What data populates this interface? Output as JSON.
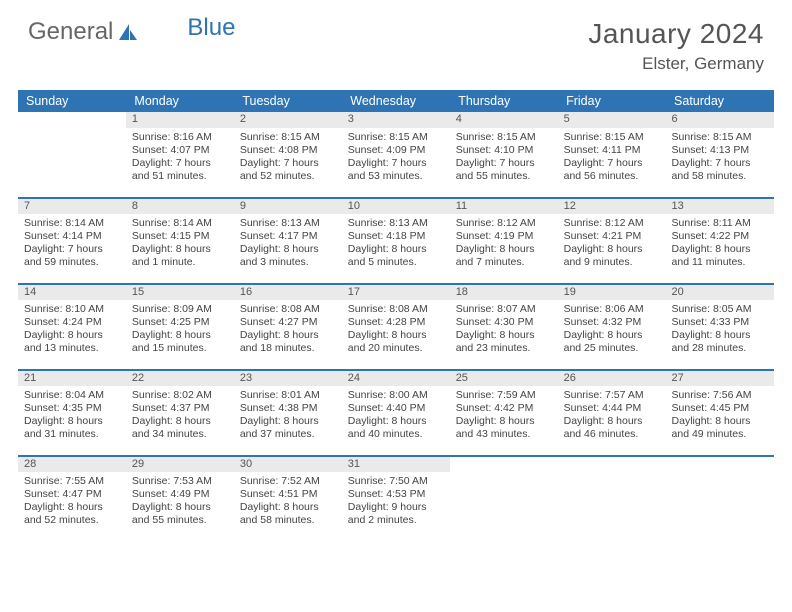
{
  "brand": {
    "part1": "General",
    "part2": "Blue"
  },
  "title": "January 2024",
  "location": "Elster, Germany",
  "weekdays": [
    "Sunday",
    "Monday",
    "Tuesday",
    "Wednesday",
    "Thursday",
    "Friday",
    "Saturday"
  ],
  "colors": {
    "accent": "#2e74b5",
    "dayBg": "#eaeaea"
  },
  "weeks": [
    [
      null,
      {
        "n": "1",
        "sr": "Sunrise: 8:16 AM",
        "ss": "Sunset: 4:07 PM",
        "d1": "Daylight: 7 hours",
        "d2": "and 51 minutes."
      },
      {
        "n": "2",
        "sr": "Sunrise: 8:15 AM",
        "ss": "Sunset: 4:08 PM",
        "d1": "Daylight: 7 hours",
        "d2": "and 52 minutes."
      },
      {
        "n": "3",
        "sr": "Sunrise: 8:15 AM",
        "ss": "Sunset: 4:09 PM",
        "d1": "Daylight: 7 hours",
        "d2": "and 53 minutes."
      },
      {
        "n": "4",
        "sr": "Sunrise: 8:15 AM",
        "ss": "Sunset: 4:10 PM",
        "d1": "Daylight: 7 hours",
        "d2": "and 55 minutes."
      },
      {
        "n": "5",
        "sr": "Sunrise: 8:15 AM",
        "ss": "Sunset: 4:11 PM",
        "d1": "Daylight: 7 hours",
        "d2": "and 56 minutes."
      },
      {
        "n": "6",
        "sr": "Sunrise: 8:15 AM",
        "ss": "Sunset: 4:13 PM",
        "d1": "Daylight: 7 hours",
        "d2": "and 58 minutes."
      }
    ],
    [
      {
        "n": "7",
        "sr": "Sunrise: 8:14 AM",
        "ss": "Sunset: 4:14 PM",
        "d1": "Daylight: 7 hours",
        "d2": "and 59 minutes."
      },
      {
        "n": "8",
        "sr": "Sunrise: 8:14 AM",
        "ss": "Sunset: 4:15 PM",
        "d1": "Daylight: 8 hours",
        "d2": "and 1 minute."
      },
      {
        "n": "9",
        "sr": "Sunrise: 8:13 AM",
        "ss": "Sunset: 4:17 PM",
        "d1": "Daylight: 8 hours",
        "d2": "and 3 minutes."
      },
      {
        "n": "10",
        "sr": "Sunrise: 8:13 AM",
        "ss": "Sunset: 4:18 PM",
        "d1": "Daylight: 8 hours",
        "d2": "and 5 minutes."
      },
      {
        "n": "11",
        "sr": "Sunrise: 8:12 AM",
        "ss": "Sunset: 4:19 PM",
        "d1": "Daylight: 8 hours",
        "d2": "and 7 minutes."
      },
      {
        "n": "12",
        "sr": "Sunrise: 8:12 AM",
        "ss": "Sunset: 4:21 PM",
        "d1": "Daylight: 8 hours",
        "d2": "and 9 minutes."
      },
      {
        "n": "13",
        "sr": "Sunrise: 8:11 AM",
        "ss": "Sunset: 4:22 PM",
        "d1": "Daylight: 8 hours",
        "d2": "and 11 minutes."
      }
    ],
    [
      {
        "n": "14",
        "sr": "Sunrise: 8:10 AM",
        "ss": "Sunset: 4:24 PM",
        "d1": "Daylight: 8 hours",
        "d2": "and 13 minutes."
      },
      {
        "n": "15",
        "sr": "Sunrise: 8:09 AM",
        "ss": "Sunset: 4:25 PM",
        "d1": "Daylight: 8 hours",
        "d2": "and 15 minutes."
      },
      {
        "n": "16",
        "sr": "Sunrise: 8:08 AM",
        "ss": "Sunset: 4:27 PM",
        "d1": "Daylight: 8 hours",
        "d2": "and 18 minutes."
      },
      {
        "n": "17",
        "sr": "Sunrise: 8:08 AM",
        "ss": "Sunset: 4:28 PM",
        "d1": "Daylight: 8 hours",
        "d2": "and 20 minutes."
      },
      {
        "n": "18",
        "sr": "Sunrise: 8:07 AM",
        "ss": "Sunset: 4:30 PM",
        "d1": "Daylight: 8 hours",
        "d2": "and 23 minutes."
      },
      {
        "n": "19",
        "sr": "Sunrise: 8:06 AM",
        "ss": "Sunset: 4:32 PM",
        "d1": "Daylight: 8 hours",
        "d2": "and 25 minutes."
      },
      {
        "n": "20",
        "sr": "Sunrise: 8:05 AM",
        "ss": "Sunset: 4:33 PM",
        "d1": "Daylight: 8 hours",
        "d2": "and 28 minutes."
      }
    ],
    [
      {
        "n": "21",
        "sr": "Sunrise: 8:04 AM",
        "ss": "Sunset: 4:35 PM",
        "d1": "Daylight: 8 hours",
        "d2": "and 31 minutes."
      },
      {
        "n": "22",
        "sr": "Sunrise: 8:02 AM",
        "ss": "Sunset: 4:37 PM",
        "d1": "Daylight: 8 hours",
        "d2": "and 34 minutes."
      },
      {
        "n": "23",
        "sr": "Sunrise: 8:01 AM",
        "ss": "Sunset: 4:38 PM",
        "d1": "Daylight: 8 hours",
        "d2": "and 37 minutes."
      },
      {
        "n": "24",
        "sr": "Sunrise: 8:00 AM",
        "ss": "Sunset: 4:40 PM",
        "d1": "Daylight: 8 hours",
        "d2": "and 40 minutes."
      },
      {
        "n": "25",
        "sr": "Sunrise: 7:59 AM",
        "ss": "Sunset: 4:42 PM",
        "d1": "Daylight: 8 hours",
        "d2": "and 43 minutes."
      },
      {
        "n": "26",
        "sr": "Sunrise: 7:57 AM",
        "ss": "Sunset: 4:44 PM",
        "d1": "Daylight: 8 hours",
        "d2": "and 46 minutes."
      },
      {
        "n": "27",
        "sr": "Sunrise: 7:56 AM",
        "ss": "Sunset: 4:45 PM",
        "d1": "Daylight: 8 hours",
        "d2": "and 49 minutes."
      }
    ],
    [
      {
        "n": "28",
        "sr": "Sunrise: 7:55 AM",
        "ss": "Sunset: 4:47 PM",
        "d1": "Daylight: 8 hours",
        "d2": "and 52 minutes."
      },
      {
        "n": "29",
        "sr": "Sunrise: 7:53 AM",
        "ss": "Sunset: 4:49 PM",
        "d1": "Daylight: 8 hours",
        "d2": "and 55 minutes."
      },
      {
        "n": "30",
        "sr": "Sunrise: 7:52 AM",
        "ss": "Sunset: 4:51 PM",
        "d1": "Daylight: 8 hours",
        "d2": "and 58 minutes."
      },
      {
        "n": "31",
        "sr": "Sunrise: 7:50 AM",
        "ss": "Sunset: 4:53 PM",
        "d1": "Daylight: 9 hours",
        "d2": "and 2 minutes."
      },
      null,
      null,
      null
    ]
  ]
}
